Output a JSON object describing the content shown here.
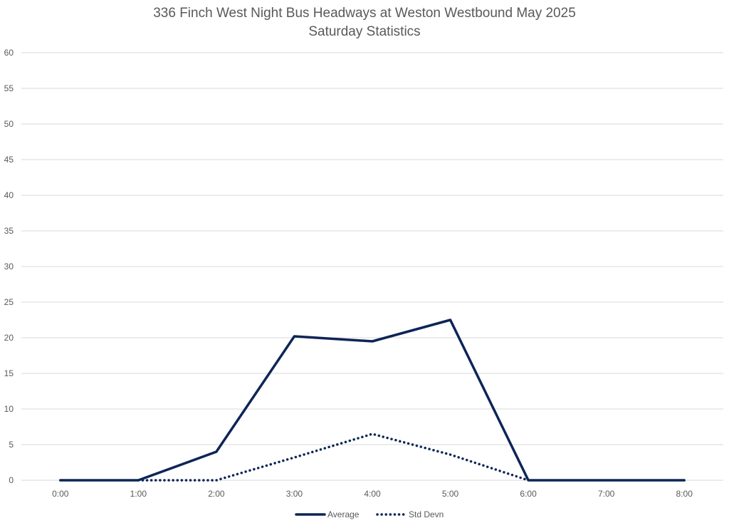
{
  "chart_data": {
    "type": "line",
    "title": "336 Finch West Night Bus Headways at Weston Westbound May 2025",
    "subtitle": "Saturday Statistics",
    "xlabel": "",
    "ylabel": "",
    "categories": [
      "0:00",
      "1:00",
      "2:00",
      "3:00",
      "4:00",
      "5:00",
      "6:00",
      "7:00",
      "8:00"
    ],
    "ylim": [
      0,
      60
    ],
    "yticks": [
      "0",
      "5",
      "10",
      "15",
      "20",
      "25",
      "30",
      "35",
      "40",
      "45",
      "50",
      "55",
      "60"
    ],
    "grid": true,
    "legend_position": "bottom",
    "series": [
      {
        "name": "Average",
        "style": "solid",
        "color": "#0d2557",
        "values": [
          0,
          0,
          4.0,
          20.2,
          19.5,
          22.5,
          0,
          0,
          0
        ]
      },
      {
        "name": "Std Devn",
        "style": "dotted",
        "color": "#0d2557",
        "values": [
          null,
          0,
          0,
          3.2,
          6.5,
          3.6,
          0,
          null,
          null
        ]
      }
    ]
  }
}
